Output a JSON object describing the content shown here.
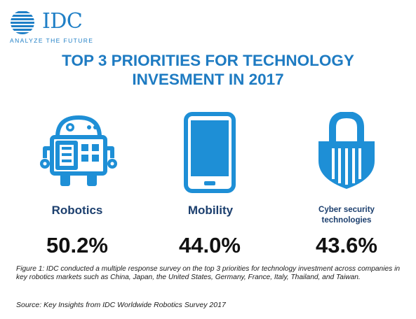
{
  "brand": {
    "name": "IDC",
    "tagline": "ANALYZE THE FUTURE",
    "color": "#1f7fc6"
  },
  "title": {
    "line1": "TOP 3 PRIORITIES FOR TECHNOLOGY",
    "line2": "INVESMENT IN 2017"
  },
  "priorities": [
    {
      "icon": "robot-icon",
      "label_line1": "Robotics",
      "label_line2": "",
      "value": "50.2%"
    },
    {
      "icon": "smartphone-icon",
      "label_line1": "Mobility",
      "label_line2": "",
      "value": "44.0%"
    },
    {
      "icon": "shield-lock-icon",
      "label_line1": "Cyber security",
      "label_line2": "technologies",
      "value": "43.6%"
    }
  ],
  "colors": {
    "icon_blue": "#1e8fd6",
    "title_blue": "#1e7bc2",
    "label_navy": "#1c3f6e"
  },
  "caption": "Figure 1:  IDC conducted a multiple response survey on the top 3 priorities for technology investment across companies in key robotics markets such as China, Japan, the United States, Germany, France, Italy, Thailand, and Taiwan.",
  "source": "Source:  Key Insights from IDC Worldwide Robotics Survey 2017"
}
